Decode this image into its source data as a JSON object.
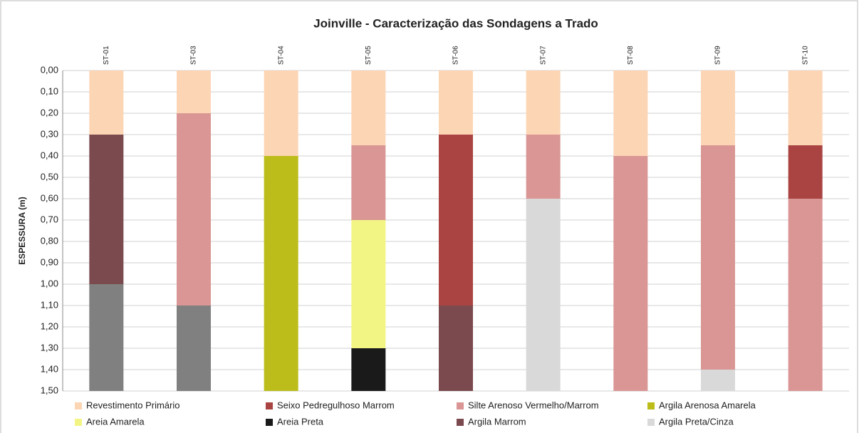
{
  "chart_data": {
    "type": "stacked_bar",
    "title": "Joinville - Caracterização das Sondagens a Trado",
    "y_label": "ESPESSURA (m)",
    "categories": [
      "ST-01",
      "ST-03",
      "ST-04",
      "ST-05",
      "ST-06",
      "ST-07",
      "ST-08",
      "ST-09",
      "ST-10"
    ],
    "series": [
      {
        "name": "Revestimento Primário",
        "color": "#fcd5b5",
        "values": [
          0.3,
          0.2,
          0.4,
          0.35,
          0.3,
          0.3,
          0.4,
          0.35,
          0.35
        ]
      },
      {
        "name": "Seixo Pedregulhoso Marrom",
        "color": "#a94442",
        "values": [
          null,
          null,
          null,
          null,
          0.8,
          null,
          null,
          null,
          0.25
        ]
      },
      {
        "name": "Silte Arenoso Vermelho/Marrom",
        "color": "#d99694",
        "values": [
          null,
          0.9,
          null,
          0.35,
          null,
          0.3,
          1.1,
          1.05,
          0.9
        ]
      },
      {
        "name": "Argila Arenosa Amarela",
        "color": "#bcbd1a",
        "values": [
          null,
          null,
          1.1,
          null,
          null,
          null,
          null,
          null,
          null
        ]
      },
      {
        "name": "Areia Amarela",
        "color": "#f2f584",
        "values": [
          null,
          null,
          null,
          0.6,
          null,
          null,
          null,
          null,
          null
        ]
      },
      {
        "name": "Areia Preta",
        "color": "#1a1a1a",
        "values": [
          null,
          null,
          null,
          0.2,
          null,
          null,
          null,
          null,
          null
        ]
      },
      {
        "name": "Argila Marrom",
        "color": "#7b4a4e",
        "values": [
          0.7,
          null,
          null,
          null,
          0.4,
          null,
          null,
          null,
          null
        ]
      },
      {
        "name": "Argila Preta/Cinza",
        "color": "#d9d9d9",
        "values": [
          null,
          null,
          null,
          null,
          null,
          0.9,
          null,
          0.1,
          null
        ]
      },
      {
        "color": "#808080",
        "values": [
          0.5,
          0.4,
          null,
          null,
          null,
          null,
          null,
          null,
          null
        ]
      }
    ],
    "ylim": [
      0,
      1.5
    ],
    "y_inverted": true,
    "yticks": [
      {
        "value": 0,
        "label": "0,00"
      },
      {
        "value": 0.1,
        "label": "0,10"
      },
      {
        "value": 0.2,
        "label": "0,20"
      },
      {
        "value": 0.3,
        "label": "0,30"
      },
      {
        "value": 0.4,
        "label": "0,40"
      },
      {
        "value": 0.5,
        "label": "0,50"
      },
      {
        "value": 0.6,
        "label": "0,60"
      },
      {
        "value": 0.7,
        "label": "0,70"
      },
      {
        "value": 0.8,
        "label": "0,80"
      },
      {
        "value": 0.9,
        "label": "0,90"
      },
      {
        "value": 1.0,
        "label": "1,00"
      },
      {
        "value": 1.1,
        "label": "1,10"
      },
      {
        "value": 1.2,
        "label": "1,20"
      },
      {
        "value": 1.3,
        "label": "1,30"
      },
      {
        "value": 1.4,
        "label": "1,40"
      },
      {
        "value": 1.5,
        "label": "1,50"
      }
    ],
    "grid": true,
    "legend": "bottom"
  }
}
